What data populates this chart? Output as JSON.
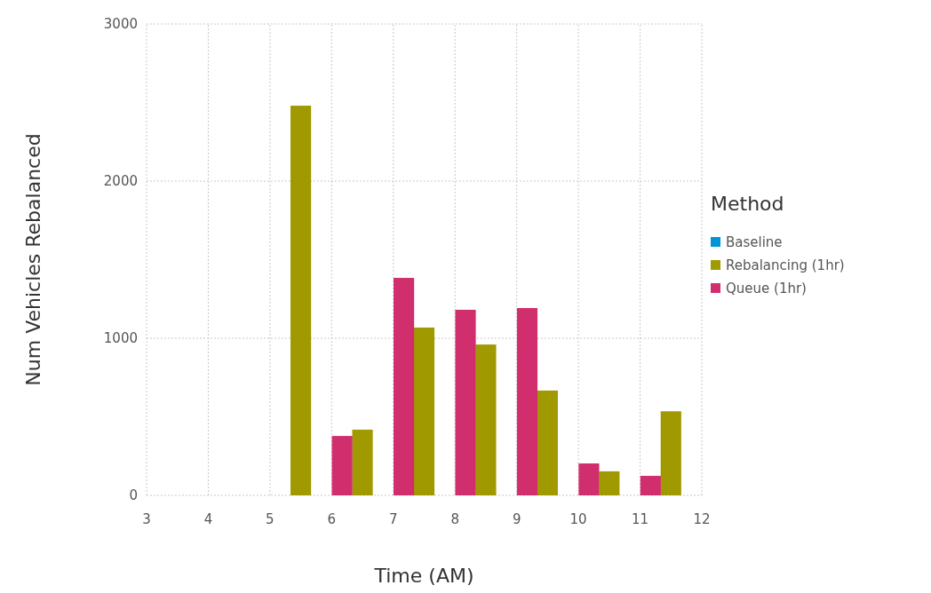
{
  "chart_data": {
    "type": "bar",
    "xlabel": "Time (AM)",
    "ylabel": "Num Vehicles Rebalanced",
    "legend_title": "Method",
    "xlim": [
      3,
      12
    ],
    "xticks": [
      3,
      4,
      5,
      6,
      7,
      8,
      9,
      10,
      11,
      12
    ],
    "ylim": [
      0,
      3000
    ],
    "yticks": [
      0,
      1000,
      2000,
      3000
    ],
    "grid": true,
    "legend": "right",
    "series": [
      {
        "name": "Baseline",
        "color": "#0096d6"
      },
      {
        "name": "Rebalancing (1hr)",
        "color": "#a09a00",
        "x": [
          5.5,
          6.5,
          7.5,
          8.5,
          9.5,
          10.5,
          11.5
        ],
        "values": [
          2480,
          418,
          1068,
          960,
          667,
          153,
          535
        ]
      },
      {
        "name": "Queue (1hr)",
        "color": "#d02e6c",
        "x": [
          6.17,
          7.17,
          8.17,
          9.17,
          10.17,
          11.17
        ],
        "values": [
          378,
          1384,
          1181,
          1192,
          203,
          124
        ]
      }
    ]
  }
}
